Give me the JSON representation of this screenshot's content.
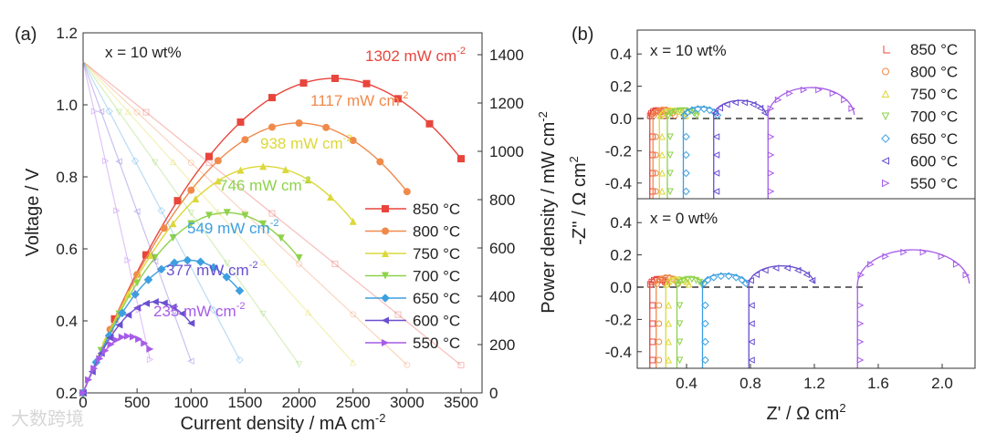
{
  "chart_data": [
    {
      "panel_label": "(a)",
      "type": "line",
      "annotation": "x = 10 wt%",
      "xlabel": "Current density / mA cm",
      "xlabel_sup": "-2",
      "ylabel_left": "Voltage / V",
      "ylabel_right": "Power density / mW cm",
      "ylabel_right_sup": "-2",
      "xlim": [
        0,
        3700
      ],
      "ylim_left": [
        0.2,
        1.2
      ],
      "ylim_right": [
        0,
        1491
      ],
      "xticks": [
        "0",
        "500",
        "1000",
        "1500",
        "2000",
        "2500",
        "3000",
        "3500"
      ],
      "yticks_left": [
        "0.2",
        "0.4",
        "0.6",
        "0.8",
        "1.0",
        "1.2"
      ],
      "yticks_right": [
        "0",
        "200",
        "400",
        "600",
        "800",
        "1000",
        "1200",
        "1400"
      ],
      "legend_position": "right",
      "series": [
        {
          "name": "850 °C",
          "color": "#e8453c",
          "marker": "square",
          "ocv": 1.12,
          "peak_power_mW": 1302,
          "max_current_mA": 3500,
          "peak_label": "1302 mW cm",
          "label_sup": "-2"
        },
        {
          "name": "800 °C",
          "color": "#f08a4b",
          "marker": "circle",
          "ocv": 1.12,
          "peak_power_mW": 1117,
          "max_current_mA": 3000,
          "peak_label": "1117 mW cm",
          "label_sup": "-2"
        },
        {
          "name": "750 °C",
          "color": "#dcd83a",
          "marker": "triangle-up",
          "ocv": 1.12,
          "peak_power_mW": 938,
          "max_current_mA": 2500,
          "peak_label": "938 mW cm",
          "label_sup": "-2"
        },
        {
          "name": "700 °C",
          "color": "#8ed24a",
          "marker": "triangle-down",
          "ocv": 1.12,
          "peak_power_mW": 746,
          "max_current_mA": 2000,
          "peak_label": "746 mW cm",
          "label_sup": "-2"
        },
        {
          "name": "650 °C",
          "color": "#3d9fe0",
          "marker": "diamond",
          "ocv": 1.12,
          "peak_power_mW": 549,
          "max_current_mA": 1450,
          "peak_label": "549 mW cm",
          "label_sup": "-2"
        },
        {
          "name": "600 °C",
          "color": "#6a4fd0",
          "marker": "triangle-left",
          "ocv": 1.12,
          "peak_power_mW": 377,
          "max_current_mA": 1000,
          "peak_label": "377 mW cm",
          "label_sup": "-2"
        },
        {
          "name": "550 °C",
          "color": "#a65ce8",
          "marker": "triangle-right",
          "ocv": 1.12,
          "peak_power_mW": 235,
          "max_current_mA": 620,
          "peak_label": "235 mW cm",
          "label_sup": "-2"
        }
      ]
    },
    {
      "panel_label": "(b)",
      "type": "scatter",
      "xlabel": "Z' / Ω cm",
      "xlabel_sup": "2",
      "ylabel": "-Z'' / Ω cm",
      "ylabel_sup": "2",
      "xlim": [
        0.09,
        2.206
      ],
      "ylim": [
        -0.5,
        0.55
      ],
      "xticks": [
        "0.4",
        "0.8",
        "1.2",
        "1.6",
        "2.0"
      ],
      "yticks": [
        "-0.4",
        "-0.2",
        "0.0",
        "0.2",
        "0.4"
      ],
      "legend_position": "top-right",
      "legend": [
        "850 °C",
        "800 °C",
        "750 °C",
        "700 °C",
        "650 °C",
        "600 °C",
        "550 °C"
      ],
      "subplots": [
        {
          "annotation": "x = 10 wt%",
          "series": [
            {
              "name": "850 °C",
              "r_ohm": 0.17,
              "r_total": 0.26,
              "peak": 0.05
            },
            {
              "name": "800 °C",
              "r_ohm": 0.19,
              "r_total": 0.33,
              "peak": 0.055
            },
            {
              "name": "750 °C",
              "r_ohm": 0.23,
              "r_total": 0.4,
              "peak": 0.05
            },
            {
              "name": "700 °C",
              "r_ohm": 0.28,
              "r_total": 0.47,
              "peak": 0.05
            },
            {
              "name": "650 °C",
              "r_ohm": 0.38,
              "r_total": 0.6,
              "peak": 0.06
            },
            {
              "name": "600 °C",
              "r_ohm": 0.57,
              "r_total": 0.9,
              "peak": 0.1
            },
            {
              "name": "550 °C",
              "r_ohm": 0.91,
              "r_total": 1.45,
              "peak": 0.18
            }
          ]
        },
        {
          "annotation": "x = 0 wt%",
          "series": [
            {
              "name": "850 °C",
              "r_ohm": 0.17,
              "r_total": 0.28,
              "peak": 0.05
            },
            {
              "name": "800 °C",
              "r_ohm": 0.21,
              "r_total": 0.35,
              "peak": 0.06
            },
            {
              "name": "750 °C",
              "r_ohm": 0.27,
              "r_total": 0.42,
              "peak": 0.05
            },
            {
              "name": "700 °C",
              "r_ohm": 0.34,
              "r_total": 0.5,
              "peak": 0.05
            },
            {
              "name": "650 °C",
              "r_ohm": 0.5,
              "r_total": 0.78,
              "peak": 0.07
            },
            {
              "name": "600 °C",
              "r_ohm": 0.79,
              "r_total": 1.2,
              "peak": 0.12
            },
            {
              "name": "550 °C",
              "r_ohm": 1.47,
              "r_total": 2.17,
              "peak": 0.22
            }
          ]
        }
      ]
    }
  ],
  "watermark": "大数跨境"
}
